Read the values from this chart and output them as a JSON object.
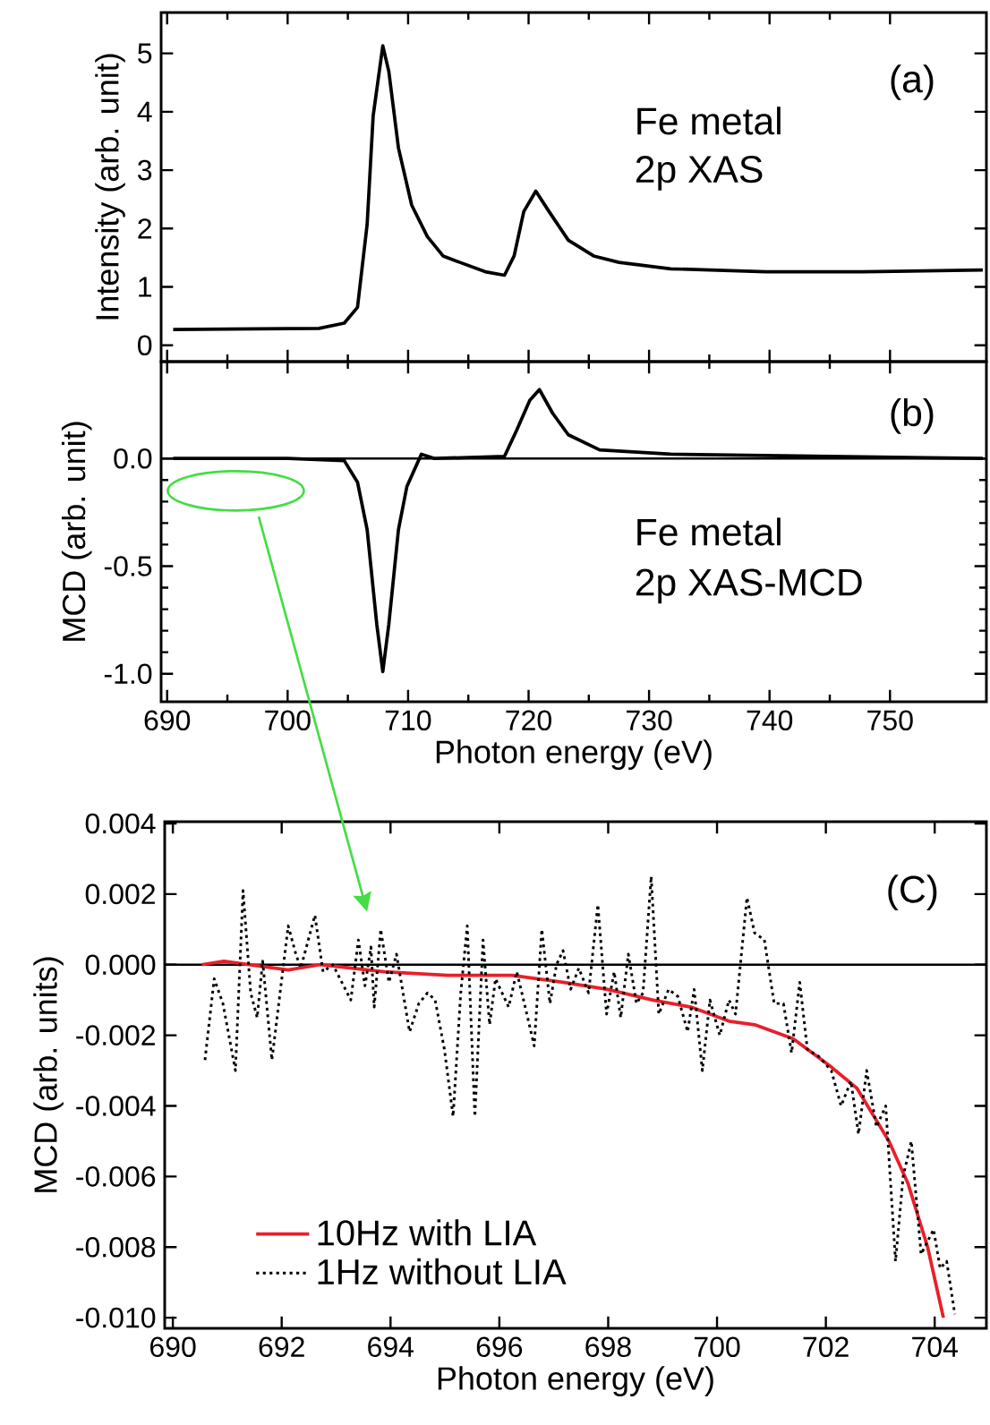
{
  "chart_data": [
    {
      "type": "line",
      "ylabel": "Intensity (arb. unit)",
      "xlim": [
        689.5,
        758
      ],
      "xticks": [
        690,
        700,
        710,
        720,
        730,
        740,
        750
      ],
      "ylim": [
        -0.28,
        5.7
      ],
      "yticks": [
        0,
        1,
        2,
        3,
        4,
        5
      ],
      "tick_labels": "y",
      "annotations": [
        "(a)",
        "Fe metal",
        "2p XAS"
      ],
      "series": [
        {
          "color": "#000000",
          "line_style": "solid",
          "x": [
            690.5,
            702.6,
            704.7,
            705.8,
            706.6,
            707.1,
            707.9,
            708.4,
            709.2,
            710.3,
            711.6,
            712.9,
            714.3,
            716.4,
            718.0,
            718.8,
            719.6,
            720.6,
            721.7,
            723.3,
            725.4,
            727.5,
            731.8,
            739.7,
            747.7,
            757.7
          ],
          "values": [
            0.27,
            0.29,
            0.38,
            0.65,
            2.07,
            3.93,
            5.13,
            4.69,
            3.38,
            2.4,
            1.86,
            1.53,
            1.42,
            1.26,
            1.2,
            1.53,
            2.29,
            2.64,
            2.29,
            1.8,
            1.53,
            1.42,
            1.31,
            1.26,
            1.26,
            1.29
          ]
        }
      ]
    },
    {
      "type": "line",
      "xlabel": "Photon energy (eV)",
      "ylabel": "MCD (arb. unit)",
      "xlim": [
        689.5,
        758
      ],
      "xticks": [
        690,
        700,
        710,
        720,
        730,
        740,
        750
      ],
      "ylim": [
        -1.13,
        0.45
      ],
      "yticks": [
        {
          "value": -1.0,
          "label": "-1.0"
        },
        {
          "value": -0.5,
          "label": "-0.5"
        },
        {
          "value": 0.0,
          "label": "0.0"
        }
      ],
      "annotations": [
        "(b)",
        "Fe metal",
        "2p XAS-MCD"
      ],
      "ref_lines": [
        {
          "axis": "y",
          "value": 0,
          "color": "#000000"
        }
      ],
      "series": [
        {
          "color": "#000000",
          "line_style": "solid",
          "x": [
            690.5,
            700.0,
            704.7,
            705.8,
            706.6,
            707.4,
            707.9,
            708.4,
            709.2,
            709.9,
            711.1,
            712.2,
            718.0,
            719.0,
            720.1,
            720.9,
            722.0,
            723.3,
            725.9,
            731.8,
            745.0,
            757.7
          ],
          "values": [
            0.0,
            0.0,
            -0.01,
            -0.11,
            -0.33,
            -0.77,
            -0.99,
            -0.77,
            -0.33,
            -0.13,
            0.02,
            0.0,
            0.01,
            0.13,
            0.27,
            0.32,
            0.21,
            0.11,
            0.04,
            0.02,
            0.01,
            0.0
          ]
        }
      ]
    },
    {
      "type": "line",
      "xlabel": "Photon energy (eV)",
      "ylabel": "MCD (arb. units)",
      "xlim": [
        689.85,
        704.95
      ],
      "xticks": [
        690,
        692,
        694,
        696,
        698,
        700,
        702,
        704
      ],
      "ylim": [
        -0.0103,
        0.00405
      ],
      "yticks": [
        {
          "value": -0.01,
          "label": "-0.010"
        },
        {
          "value": -0.008,
          "label": "-0.008"
        },
        {
          "value": -0.006,
          "label": "-0.006"
        },
        {
          "value": -0.004,
          "label": "-0.004"
        },
        {
          "value": -0.002,
          "label": "-0.002"
        },
        {
          "value": 0.0,
          "label": "0.000"
        },
        {
          "value": 0.002,
          "label": "0.002"
        },
        {
          "value": 0.004,
          "label": "0.004"
        }
      ],
      "annotations": [
        "(C)"
      ],
      "legend": "bottom left",
      "ref_lines": [
        {
          "axis": "y",
          "value": 0,
          "color": "#000000"
        }
      ],
      "series": [
        {
          "name": "10Hz with LIA",
          "color": "#e8202a",
          "line_style": "solid",
          "x": [
            690.53,
            690.94,
            692.12,
            692.7,
            693.88,
            695.05,
            696.23,
            697.17,
            697.99,
            698.81,
            699.52,
            700.22,
            700.69,
            701.4,
            702.1,
            702.57,
            703.16,
            703.51,
            703.87,
            704.16
          ],
          "values": [
            0.0,
            0.0001,
            -0.00015,
            0.0,
            -0.0002,
            -0.0003,
            -0.0003,
            -0.0005,
            -0.0007,
            -0.001,
            -0.0012,
            -0.0016,
            -0.0017,
            -0.0021,
            -0.0029,
            -0.0035,
            -0.005,
            -0.0062,
            -0.008,
            -0.01
          ]
        },
        {
          "name": "1Hz without LIA",
          "color": "#000000",
          "line_style": "dotted",
          "x": [
            690.59,
            690.76,
            690.92,
            691.15,
            691.29,
            691.43,
            691.55,
            691.65,
            691.82,
            692.12,
            692.26,
            692.35,
            692.61,
            692.76,
            692.94,
            693.27,
            693.41,
            693.53,
            693.64,
            693.7,
            693.82,
            693.97,
            694.11,
            694.35,
            694.52,
            694.68,
            694.82,
            694.99,
            695.15,
            695.29,
            695.41,
            695.55,
            695.7,
            695.82,
            695.93,
            696.17,
            696.32,
            696.46,
            696.64,
            696.78,
            696.93,
            697.05,
            697.17,
            697.31,
            697.46,
            697.64,
            697.81,
            697.97,
            698.11,
            698.23,
            698.37,
            698.52,
            698.64,
            698.79,
            698.93,
            699.11,
            699.28,
            699.46,
            699.58,
            699.73,
            699.87,
            700.05,
            700.22,
            700.34,
            700.55,
            700.69,
            700.87,
            701.05,
            701.22,
            701.37,
            701.52,
            701.66,
            701.87,
            702.1,
            702.28,
            702.46,
            702.6,
            702.75,
            702.93,
            703.1,
            703.28,
            703.42,
            703.57,
            703.75,
            703.98,
            704.1,
            704.22,
            704.37
          ],
          "values": [
            -0.0027,
            -0.0004,
            -0.0011,
            -0.003,
            0.0021,
            -0.0008,
            -0.0015,
            0.0001,
            -0.0027,
            0.0011,
            0.0003,
            -0.0001,
            0.0014,
            -0.0002,
            0.0,
            -0.001,
            0.0007,
            -0.0006,
            0.0005,
            -0.0012,
            0.001,
            -0.0005,
            0.0003,
            -0.0019,
            -0.0011,
            -0.0008,
            -0.001,
            -0.0024,
            -0.0043,
            -0.0008,
            0.0011,
            -0.0043,
            0.0007,
            -0.0017,
            -0.0004,
            -0.0012,
            -0.0002,
            -0.0011,
            -0.0023,
            0.001,
            -0.0011,
            0.0,
            0.0004,
            -0.0007,
            -0.0001,
            -0.0008,
            0.0017,
            -0.0014,
            -0.0002,
            -0.0015,
            0.0003,
            -0.0011,
            -0.0008,
            0.0025,
            -0.0014,
            -0.0007,
            -0.0009,
            -0.0019,
            -0.0007,
            -0.003,
            -0.001,
            -0.002,
            -0.001,
            -0.0014,
            0.0019,
            0.0009,
            0.0007,
            -0.0011,
            -0.0011,
            -0.0025,
            -0.0005,
            -0.0024,
            -0.0026,
            -0.003,
            -0.004,
            -0.0033,
            -0.0048,
            -0.003,
            -0.0046,
            -0.004,
            -0.0084,
            -0.006,
            -0.005,
            -0.0082,
            -0.0075,
            -0.0086,
            -0.0084,
            -0.0099
          ]
        }
      ]
    }
  ]
}
